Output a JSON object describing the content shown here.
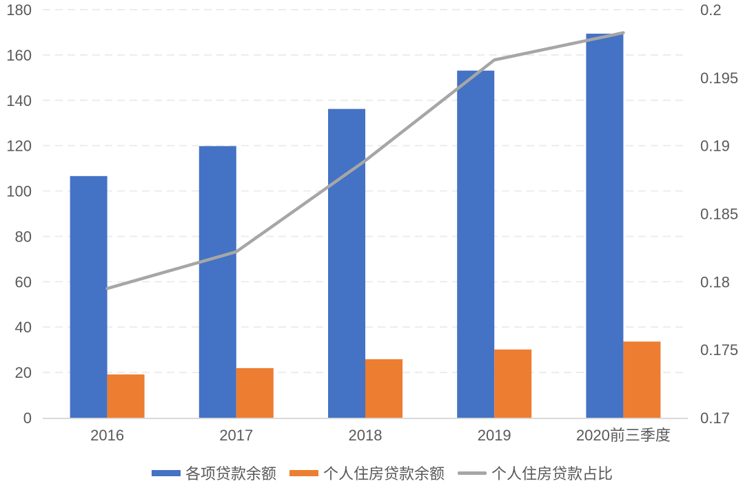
{
  "chart_data": {
    "type": "bar",
    "subtype": "combo-bar-line-dual-axis",
    "categories": [
      "2016",
      "2017",
      "2018",
      "2019",
      "2020前三季度"
    ],
    "series": [
      {
        "name": "各项贷款余额",
        "chart_type": "bar",
        "axis": "left",
        "color": "#4472C4",
        "values": [
          106.6,
          119.8,
          136.2,
          153.1,
          169.4
        ]
      },
      {
        "name": "个人住房贷款余额",
        "chart_type": "bar",
        "axis": "left",
        "color": "#ED7D31",
        "values": [
          19.1,
          21.9,
          25.8,
          30.1,
          33.6
        ]
      },
      {
        "name": "个人住房贷款占比",
        "chart_type": "line",
        "axis": "right",
        "color": "#A6A6A6",
        "values": [
          0.1795,
          0.1822,
          0.1889,
          0.1963,
          0.1983
        ]
      }
    ],
    "left_axis": {
      "min": 0,
      "max": 180,
      "tick_values": [
        0,
        20,
        40,
        60,
        80,
        100,
        120,
        140,
        160,
        180
      ],
      "tick_labels": [
        "0",
        "20",
        "40",
        "60",
        "80",
        "100",
        "120",
        "140",
        "160",
        "180"
      ]
    },
    "right_axis": {
      "min": 0.17,
      "max": 0.2,
      "tick_values": [
        0.17,
        0.175,
        0.18,
        0.185,
        0.19,
        0.195,
        0.2
      ],
      "tick_labels": [
        "0.17",
        "0.175",
        "0.18",
        "0.185",
        "0.19",
        "0.195",
        "0.2"
      ]
    },
    "grid": {
      "horizontal": true,
      "style": "dashed"
    },
    "legend_position": "bottom"
  },
  "legend": {
    "items": [
      {
        "label": "各项贷款余额",
        "marker": "rect",
        "color": "#4472C4"
      },
      {
        "label": "个人住房贷款余额",
        "marker": "rect",
        "color": "#ED7D31"
      },
      {
        "label": "个人住房贷款占比",
        "marker": "line",
        "color": "#A6A6A6"
      }
    ]
  },
  "colors": {
    "bar_primary": "#4472C4",
    "bar_secondary": "#ED7D31",
    "trend_line": "#A6A6A6",
    "gridline": "#ECECEC",
    "axis_line": "#D9D9D9",
    "text": "#595959"
  }
}
